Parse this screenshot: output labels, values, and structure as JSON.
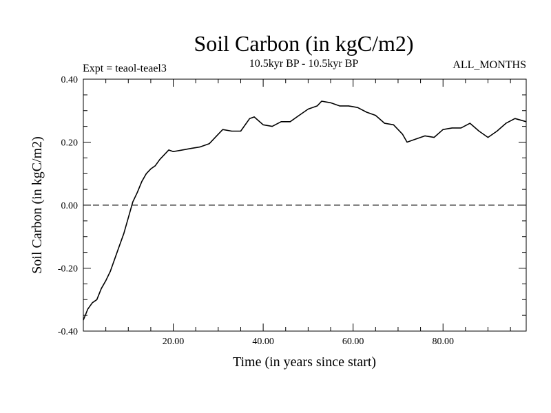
{
  "chart_data": {
    "type": "line",
    "title": "Soil Carbon (in kgC/m2)",
    "subtitle": "10.5kyr BP - 10.5kyr BP",
    "left_label": "Expt = teaol-teael3",
    "right_label": "ALL_MONTHS",
    "xlabel": "Time (in years since start)",
    "ylabel": "Soil Carbon (in kgC/m2)",
    "xlim": [
      0,
      98.5
    ],
    "ylim": [
      -0.4,
      0.4
    ],
    "xticks": [
      20,
      40,
      60,
      80
    ],
    "xtick_labels": [
      "20.00",
      "40.00",
      "60.00",
      "80.00"
    ],
    "yticks": [
      -0.4,
      -0.2,
      0.0,
      0.2,
      0.4
    ],
    "ytick_labels": [
      "-0.40",
      "-0.20",
      "0.00",
      "0.20",
      "0.40"
    ],
    "reference_line": 0.0,
    "series": [
      {
        "name": "Soil Carbon",
        "x": [
          0,
          1,
          2,
          3,
          4,
          5,
          6,
          7,
          8,
          9,
          10,
          11,
          12,
          13,
          14,
          15,
          16,
          17,
          18,
          19,
          20,
          22,
          24,
          26,
          28,
          30,
          31,
          33,
          35,
          37,
          38,
          40,
          42,
          44,
          46,
          48,
          50,
          52,
          53,
          55,
          57,
          59,
          61,
          63,
          65,
          67,
          69,
          71,
          72,
          74,
          76,
          78,
          80,
          82,
          84,
          86,
          88,
          90,
          92,
          94,
          96,
          98.5
        ],
        "y": [
          -0.365,
          -0.33,
          -0.31,
          -0.3,
          -0.265,
          -0.24,
          -0.21,
          -0.17,
          -0.13,
          -0.09,
          -0.04,
          0.01,
          0.04,
          0.075,
          0.1,
          0.115,
          0.125,
          0.145,
          0.16,
          0.175,
          0.17,
          0.175,
          0.18,
          0.185,
          0.195,
          0.225,
          0.24,
          0.235,
          0.235,
          0.275,
          0.28,
          0.255,
          0.25,
          0.265,
          0.265,
          0.285,
          0.305,
          0.315,
          0.33,
          0.325,
          0.315,
          0.315,
          0.31,
          0.295,
          0.285,
          0.26,
          0.255,
          0.225,
          0.2,
          0.21,
          0.22,
          0.215,
          0.24,
          0.245,
          0.245,
          0.26,
          0.235,
          0.215,
          0.235,
          0.26,
          0.275,
          0.265
        ]
      }
    ]
  }
}
